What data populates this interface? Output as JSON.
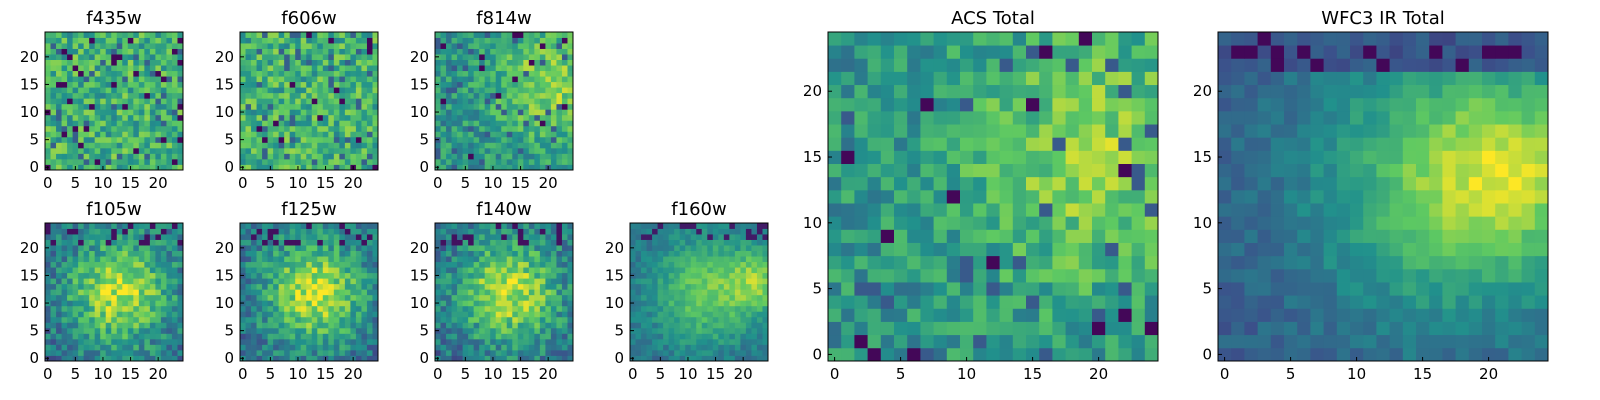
{
  "figure": {
    "colormap": [
      "#440154",
      "#3b528b",
      "#21918c",
      "#5ec962",
      "#fde725"
    ]
  },
  "chart_data": [
    {
      "type": "heatmap",
      "title": "f435w",
      "grid": [
        25,
        25
      ],
      "xticks": [
        0,
        5,
        10,
        15,
        20
      ],
      "yticks": [
        0,
        5,
        10,
        15,
        20
      ],
      "xlim": [
        0,
        25
      ],
      "ylim": [
        0,
        25
      ],
      "pattern": "noise",
      "seed": 11
    },
    {
      "type": "heatmap",
      "title": "f606w",
      "grid": [
        25,
        25
      ],
      "xticks": [
        0,
        5,
        10,
        15,
        20
      ],
      "yticks": [
        0,
        5,
        10,
        15,
        20
      ],
      "xlim": [
        0,
        25
      ],
      "ylim": [
        0,
        25
      ],
      "pattern": "noise",
      "seed": 23
    },
    {
      "type": "heatmap",
      "title": "f814w",
      "grid": [
        25,
        25
      ],
      "xticks": [
        0,
        5,
        10,
        15,
        20
      ],
      "yticks": [
        0,
        5,
        10,
        15,
        20
      ],
      "xlim": [
        0,
        25
      ],
      "ylim": [
        0,
        25
      ],
      "pattern": "noise-bright-right",
      "seed": 37
    },
    {
      "type": "heatmap",
      "title": "f105w",
      "grid": [
        25,
        25
      ],
      "xticks": [
        0,
        5,
        10,
        15,
        20
      ],
      "yticks": [
        0,
        5,
        10,
        15,
        20
      ],
      "xlim": [
        0,
        25
      ],
      "ylim": [
        0,
        25
      ],
      "pattern": "blob",
      "seed": 41
    },
    {
      "type": "heatmap",
      "title": "f125w",
      "grid": [
        25,
        25
      ],
      "xticks": [
        0,
        5,
        10,
        15,
        20
      ],
      "yticks": [
        0,
        5,
        10,
        15,
        20
      ],
      "xlim": [
        0,
        25
      ],
      "ylim": [
        0,
        25
      ],
      "pattern": "blob",
      "seed": 53
    },
    {
      "type": "heatmap",
      "title": "f140w",
      "grid": [
        25,
        25
      ],
      "xticks": [
        0,
        5,
        10,
        15,
        20
      ],
      "yticks": [
        0,
        5,
        10,
        15,
        20
      ],
      "xlim": [
        0,
        25
      ],
      "ylim": [
        0,
        25
      ],
      "pattern": "blob",
      "seed": 67
    },
    {
      "type": "heatmap",
      "title": "f160w",
      "grid": [
        25,
        25
      ],
      "xticks": [
        0,
        5,
        10,
        15,
        20
      ],
      "yticks": [
        0,
        5,
        10,
        15,
        20
      ],
      "xlim": [
        0,
        25
      ],
      "ylim": [
        0,
        25
      ],
      "pattern": "blob-smooth",
      "seed": 79
    },
    {
      "type": "heatmap",
      "title": "ACS Total",
      "grid": [
        25,
        25
      ],
      "xticks": [
        0,
        5,
        10,
        15,
        20
      ],
      "yticks": [
        0,
        5,
        10,
        15,
        20
      ],
      "xlim": [
        0,
        25
      ],
      "ylim": [
        0,
        25
      ],
      "pattern": "noise-bright-right",
      "seed": 97
    },
    {
      "type": "heatmap",
      "title": "WFC3 IR Total",
      "grid": [
        25,
        25
      ],
      "xticks": [
        0,
        5,
        10,
        15,
        20
      ],
      "yticks": [
        0,
        5,
        10,
        15,
        20
      ],
      "xlim": [
        0,
        25
      ],
      "ylim": [
        0,
        25
      ],
      "pattern": "blob-smooth-darktop",
      "seed": 101
    }
  ]
}
